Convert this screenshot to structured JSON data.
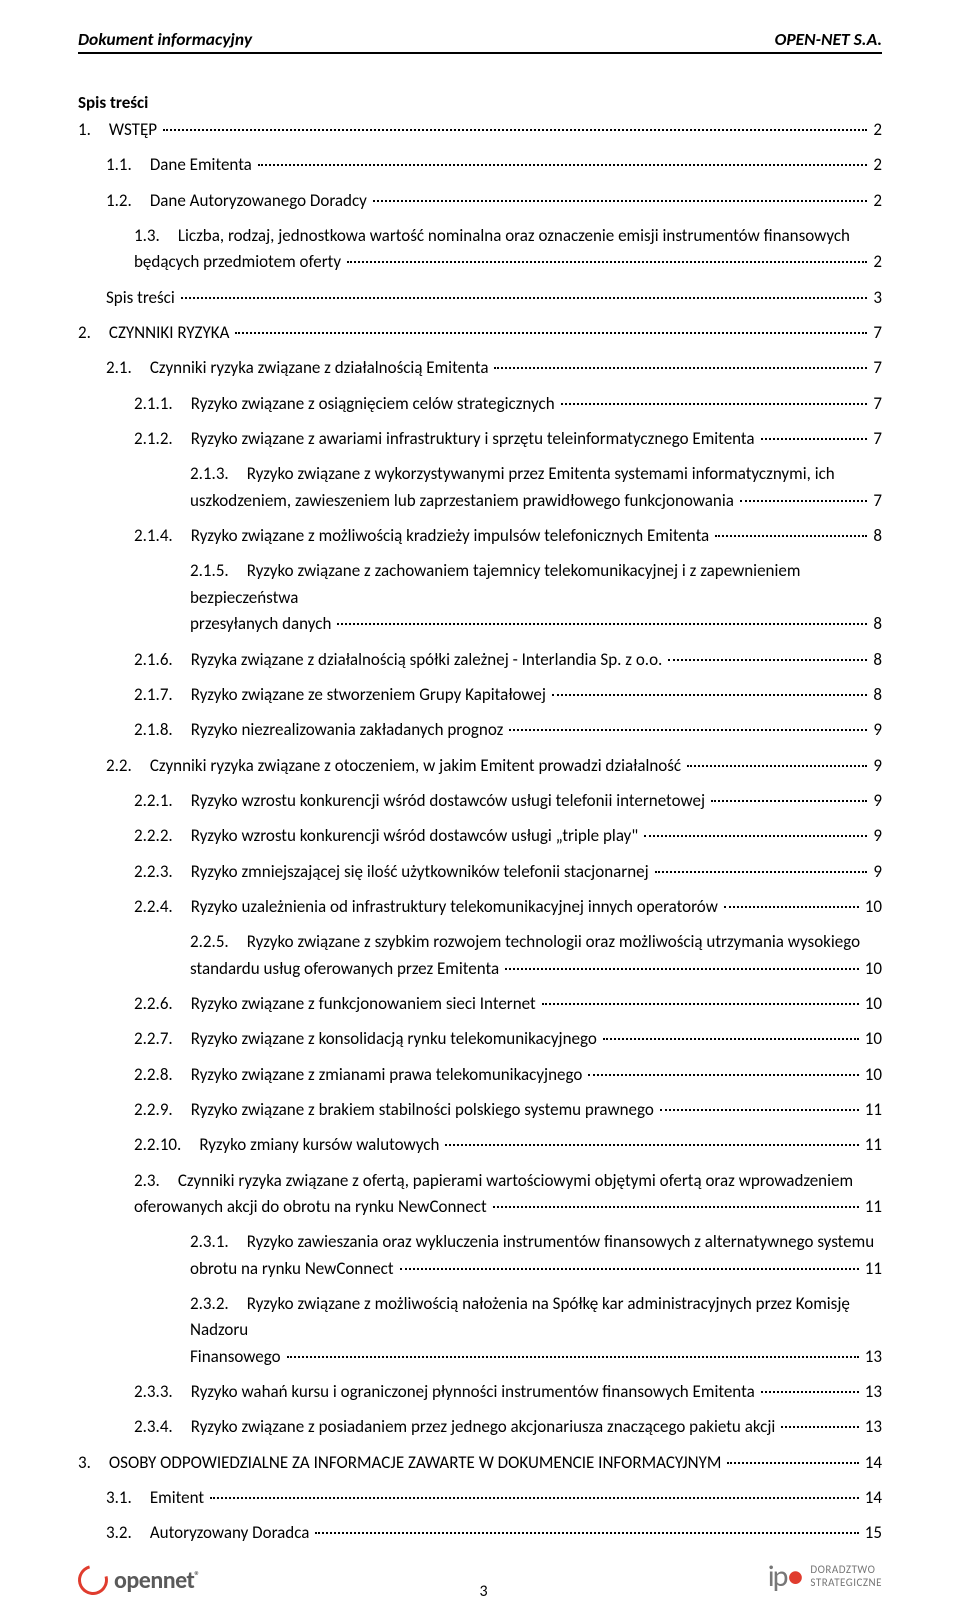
{
  "header": {
    "left": "Dokument informacyjny",
    "right": "OPEN-NET S.A."
  },
  "spis_label": "Spis treści",
  "page_number": "3",
  "footer": {
    "left_logo_text": "opennet",
    "right_logo_text": "ipo",
    "right_sub1": "DORADZTWO",
    "right_sub2": "STRATEGICZNE"
  },
  "toc": [
    {
      "lvl": 0,
      "num": "1.",
      "title": "WSTĘP",
      "page": "2"
    },
    {
      "lvl": 1,
      "num": "1.1.",
      "title": "Dane Emitenta",
      "page": "2"
    },
    {
      "lvl": 1,
      "num": "1.2.",
      "title": "Dane Autoryzowanego Doradcy",
      "page": "2"
    },
    {
      "lvl": 1,
      "num": "1.3.",
      "multi": true,
      "line1": "Liczba, rodzaj, jednostkowa wartość nominalna oraz oznaczenie emisji instrumentów finansowych",
      "line2": "będących przedmiotem oferty",
      "page": "2",
      "line2_indent": 28
    },
    {
      "lvl": 1,
      "num": "",
      "title": "Spis treści",
      "page": "3"
    },
    {
      "lvl": 0,
      "num": "2.",
      "title": "CZYNNIKI RYZYKA",
      "page": "7"
    },
    {
      "lvl": 1,
      "num": "2.1.",
      "title": "Czynniki ryzyka związane z działalnością Emitenta",
      "page": "7"
    },
    {
      "lvl": 2,
      "num": "2.1.1.",
      "title": "Ryzyko związane z osiągnięciem celów strategicznych",
      "page": "7"
    },
    {
      "lvl": 2,
      "num": "2.1.2.",
      "title": "Ryzyko związane z awariami infrastruktury i sprzętu teleinformatycznego Emitenta",
      "page": "7"
    },
    {
      "lvl": 2,
      "num": "2.1.3.",
      "multi": true,
      "line1": "Ryzyko związane z wykorzystywanymi przez Emitenta systemami informatycznymi, ich",
      "line2": "uszkodzeniem, zawieszeniem lub zaprzestaniem prawidłowego funkcjonowania",
      "page": "7",
      "line2_indent": 56
    },
    {
      "lvl": 2,
      "num": "2.1.4.",
      "title": "Ryzyko związane z możliwością kradzieży impulsów telefonicznych Emitenta",
      "page": "8"
    },
    {
      "lvl": 2,
      "num": "2.1.5.",
      "multi": true,
      "line1": "Ryzyko związane z zachowaniem tajemnicy telekomunikacyjnej i z zapewnieniem bezpieczeństwa",
      "line2": "przesyłanych danych",
      "page": "8",
      "line2_indent": 56
    },
    {
      "lvl": 2,
      "num": "2.1.6.",
      "title": "Ryzyka związane z działalnością spółki zależnej - Interlandia Sp. z o.o.",
      "page": "8"
    },
    {
      "lvl": 2,
      "num": "2.1.7.",
      "title": "Ryzyko związane ze stworzeniem Grupy Kapitałowej",
      "page": "8"
    },
    {
      "lvl": 2,
      "num": "2.1.8.",
      "title": "Ryzyko niezrealizowania zakładanych prognoz",
      "page": "9"
    },
    {
      "lvl": 1,
      "num": "2.2.",
      "title": "Czynniki ryzyka związane z otoczeniem, w jakim Emitent prowadzi działalność",
      "page": "9"
    },
    {
      "lvl": 2,
      "num": "2.2.1.",
      "title": "Ryzyko wzrostu konkurencji wśród dostawców usługi telefonii internetowej",
      "page": "9"
    },
    {
      "lvl": 2,
      "num": "2.2.2.",
      "title": "Ryzyko wzrostu konkurencji wśród dostawców usługi „triple play\"",
      "page": "9"
    },
    {
      "lvl": 2,
      "num": "2.2.3.",
      "title": "Ryzyko zmniejszającej się ilość użytkowników telefonii stacjonarnej",
      "page": "9"
    },
    {
      "lvl": 2,
      "num": "2.2.4.",
      "title": "Ryzyko uzależnienia od infrastruktury telekomunikacyjnej innych operatorów",
      "page": "10"
    },
    {
      "lvl": 2,
      "num": "2.2.5.",
      "multi": true,
      "line1": "Ryzyko związane z szybkim rozwojem technologii oraz możliwością utrzymania wysokiego",
      "line2": "standardu usług oferowanych przez Emitenta",
      "page": "10",
      "line2_indent": 56
    },
    {
      "lvl": 2,
      "num": "2.2.6.",
      "title": "Ryzyko związane z funkcjonowaniem sieci Internet",
      "page": "10"
    },
    {
      "lvl": 2,
      "num": "2.2.7.",
      "title": "Ryzyko związane z konsolidacją rynku telekomunikacyjnego",
      "page": "10"
    },
    {
      "lvl": 2,
      "num": "2.2.8.",
      "title": "Ryzyko związane z zmianami prawa telekomunikacyjnego",
      "page": "10"
    },
    {
      "lvl": 2,
      "num": "2.2.9.",
      "title": "Ryzyko związane z brakiem stabilności polskiego systemu prawnego",
      "page": "11"
    },
    {
      "lvl": 2,
      "num": "2.2.10.",
      "title": "Ryzyko zmiany kursów walutowych",
      "page": "11"
    },
    {
      "lvl": 1,
      "num": "2.3.",
      "multi": true,
      "line1": "Czynniki ryzyka związane z ofertą, papierami wartościowymi objętymi ofertą oraz wprowadzeniem",
      "line2": "oferowanych akcji do obrotu na rynku NewConnect",
      "page": "11",
      "line2_indent": 28
    },
    {
      "lvl": 2,
      "num": "2.3.1.",
      "multi": true,
      "line1": "Ryzyko zawieszania oraz wykluczenia instrumentów finansowych z alternatywnego systemu",
      "line2": "obrotu na rynku NewConnect",
      "page": "11",
      "line2_indent": 56
    },
    {
      "lvl": 2,
      "num": "2.3.2.",
      "multi": true,
      "line1": "Ryzyko związane z możliwością nałożenia na Spółkę kar administracyjnych przez Komisję Nadzoru",
      "line2": "Finansowego",
      "page": "13",
      "line2_indent": 56
    },
    {
      "lvl": 2,
      "num": "2.3.3.",
      "title": "Ryzyko wahań kursu i ograniczonej płynności instrumentów finansowych Emitenta",
      "page": "13"
    },
    {
      "lvl": 2,
      "num": "2.3.4.",
      "title": "Ryzyko związane z posiadaniem przez jednego akcjonariusza znaczącego pakietu akcji",
      "page": "13"
    },
    {
      "lvl": 0,
      "num": "3.",
      "title": "OSOBY ODPOWIEDZIALNE ZA INFORMACJE ZAWARTE W DOKUMENCIE INFORMACYJNYM",
      "page": "14"
    },
    {
      "lvl": 1,
      "num": "3.1.",
      "title": "Emitent",
      "page": "14"
    },
    {
      "lvl": 1,
      "num": "3.2.",
      "title": "Autoryzowany Doradca",
      "page": "15"
    }
  ]
}
